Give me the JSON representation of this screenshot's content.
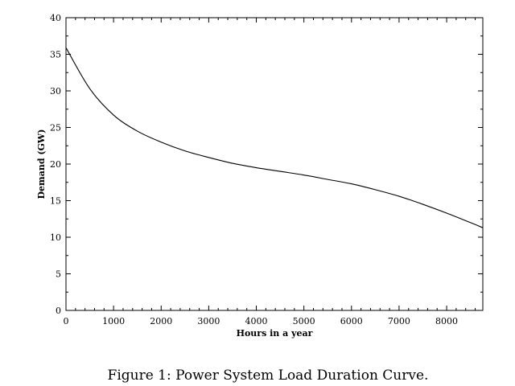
{
  "caption": "Figure 1: Power System Load Duration Curve.",
  "chart_data": {
    "type": "line",
    "xlabel": "Hours in a year",
    "ylabel": "Demand (GW)",
    "xlim": [
      0,
      8760
    ],
    "ylim": [
      0,
      40
    ],
    "x_ticks": [
      0,
      1000,
      2000,
      3000,
      4000,
      5000,
      6000,
      7000,
      8000
    ],
    "y_ticks": [
      0,
      5,
      10,
      15,
      20,
      25,
      30,
      35,
      40
    ],
    "grid": false,
    "series": [
      {
        "x": [
          0,
          500,
          1000,
          1500,
          2000,
          2500,
          3000,
          3500,
          4000,
          4500,
          5000,
          5500,
          6000,
          6500,
          7000,
          7500,
          8000,
          8500,
          8760
        ],
        "y": [
          35.9,
          30.3,
          26.7,
          24.5,
          23.0,
          21.8,
          20.9,
          20.1,
          19.5,
          19.0,
          18.5,
          17.9,
          17.3,
          16.5,
          15.6,
          14.5,
          13.3,
          12.0,
          11.3
        ]
      }
    ]
  }
}
